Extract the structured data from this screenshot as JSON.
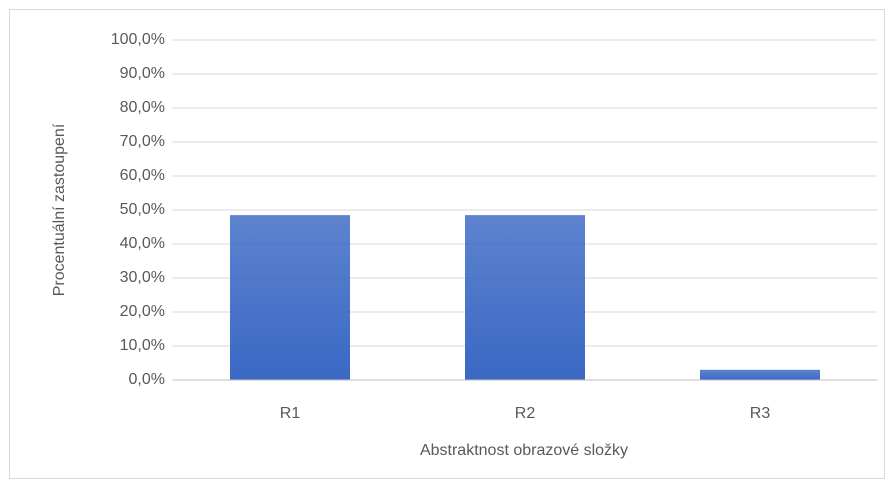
{
  "chart_data": {
    "type": "bar",
    "x_label": "Abstraktnost obrazové složky",
    "y_label": "Procentuální zastoupení",
    "categories": [
      "R1",
      "R2",
      "R3"
    ],
    "values": [
      48.5,
      48.5,
      3.0
    ],
    "color": "#3a68c4",
    "ylim": [
      0,
      100
    ],
    "yticks": [
      {
        "value": 0,
        "label": "0,0%"
      },
      {
        "value": 10,
        "label": "10,0%"
      },
      {
        "value": 20,
        "label": "20,0%"
      },
      {
        "value": 30,
        "label": "30,0%"
      },
      {
        "value": 40,
        "label": "40,0%"
      },
      {
        "value": 50,
        "label": "50,0%"
      },
      {
        "value": 60,
        "label": "60,0%"
      },
      {
        "value": 70,
        "label": "70,0%"
      },
      {
        "value": 80,
        "label": "80,0%"
      },
      {
        "value": 90,
        "label": "90,0%"
      },
      {
        "value": 100,
        "label": "100,0%"
      }
    ],
    "grid": true
  }
}
